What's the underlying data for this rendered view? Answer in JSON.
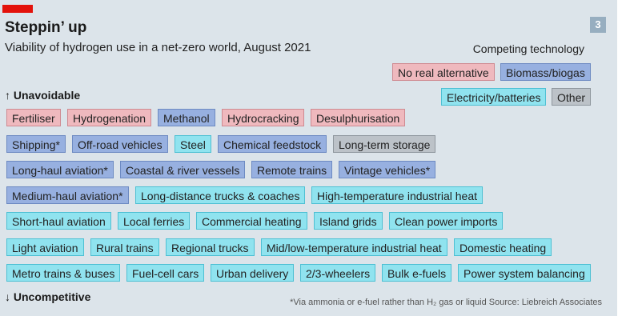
{
  "header": {
    "title": "Steppin’ up",
    "subtitle": "Viability of hydrogen use in a net-zero world, August 2021",
    "badge": "3"
  },
  "legend": {
    "title": "Competing technology",
    "items": [
      {
        "label": "No real alternative",
        "key": "no-real"
      },
      {
        "label": "Biomass/biogas",
        "key": "biomass"
      },
      {
        "label": "Electricity/batteries",
        "key": "electric"
      },
      {
        "label": "Other",
        "key": "other"
      }
    ]
  },
  "scale": {
    "top_label": "↑ Unavoidable",
    "bottom_label": "↓ Uncompetitive"
  },
  "footnote": "*Via ammonia or e-fuel rather than H₂ gas or liquid   Source: Liebreich Associates",
  "colors": {
    "no-real": "#efb9be",
    "biomass": "#97b0e0",
    "electric": "#90e3ef",
    "other": "#bcc2c8",
    "brand_red": "#e3120b",
    "background": "#dce4ea"
  },
  "chart_data": {
    "type": "table",
    "title": "Steppin’ up",
    "subtitle": "Viability of hydrogen use in a net-zero world, August 2021",
    "ordering": "rows from Unavoidable (top) to Uncompetitive (bottom)",
    "rows": [
      [
        {
          "label": "Fertiliser",
          "tech": "no-real"
        },
        {
          "label": "Hydrogenation",
          "tech": "no-real"
        },
        {
          "label": "Methanol",
          "tech": "biomass"
        },
        {
          "label": "Hydrocracking",
          "tech": "no-real"
        },
        {
          "label": "Desulphurisation",
          "tech": "no-real"
        }
      ],
      [
        {
          "label": "Shipping*",
          "tech": "biomass"
        },
        {
          "label": "Off-road vehicles",
          "tech": "biomass"
        },
        {
          "label": "Steel",
          "tech": "electric"
        },
        {
          "label": "Chemical feedstock",
          "tech": "biomass"
        },
        {
          "label": "Long-term storage",
          "tech": "other"
        }
      ],
      [
        {
          "label": "Long-haul aviation*",
          "tech": "biomass"
        },
        {
          "label": "Coastal & river vessels",
          "tech": "biomass"
        },
        {
          "label": "Remote trains",
          "tech": "biomass"
        },
        {
          "label": "Vintage vehicles*",
          "tech": "biomass"
        }
      ],
      [
        {
          "label": "Medium-haul aviation*",
          "tech": "biomass"
        },
        {
          "label": "Long-distance trucks & coaches",
          "tech": "electric"
        },
        {
          "label": "High-temperature industrial heat",
          "tech": "electric"
        }
      ],
      [
        {
          "label": "Short-haul aviation",
          "tech": "electric"
        },
        {
          "label": "Local ferries",
          "tech": "electric"
        },
        {
          "label": "Commercial heating",
          "tech": "electric"
        },
        {
          "label": "Island grids",
          "tech": "electric"
        },
        {
          "label": "Clean power imports",
          "tech": "electric"
        }
      ],
      [
        {
          "label": "Light aviation",
          "tech": "electric"
        },
        {
          "label": "Rural trains",
          "tech": "electric"
        },
        {
          "label": "Regional trucks",
          "tech": "electric"
        },
        {
          "label": "Mid/low-temperature industrial heat",
          "tech": "electric"
        },
        {
          "label": "Domestic heating",
          "tech": "electric"
        }
      ],
      [
        {
          "label": "Metro trains & buses",
          "tech": "electric"
        },
        {
          "label": "Fuel-cell cars",
          "tech": "electric"
        },
        {
          "label": "Urban delivery",
          "tech": "electric"
        },
        {
          "label": "2/3-wheelers",
          "tech": "electric"
        },
        {
          "label": "Bulk e-fuels",
          "tech": "electric"
        },
        {
          "label": "Power system balancing",
          "tech": "electric"
        }
      ]
    ]
  }
}
